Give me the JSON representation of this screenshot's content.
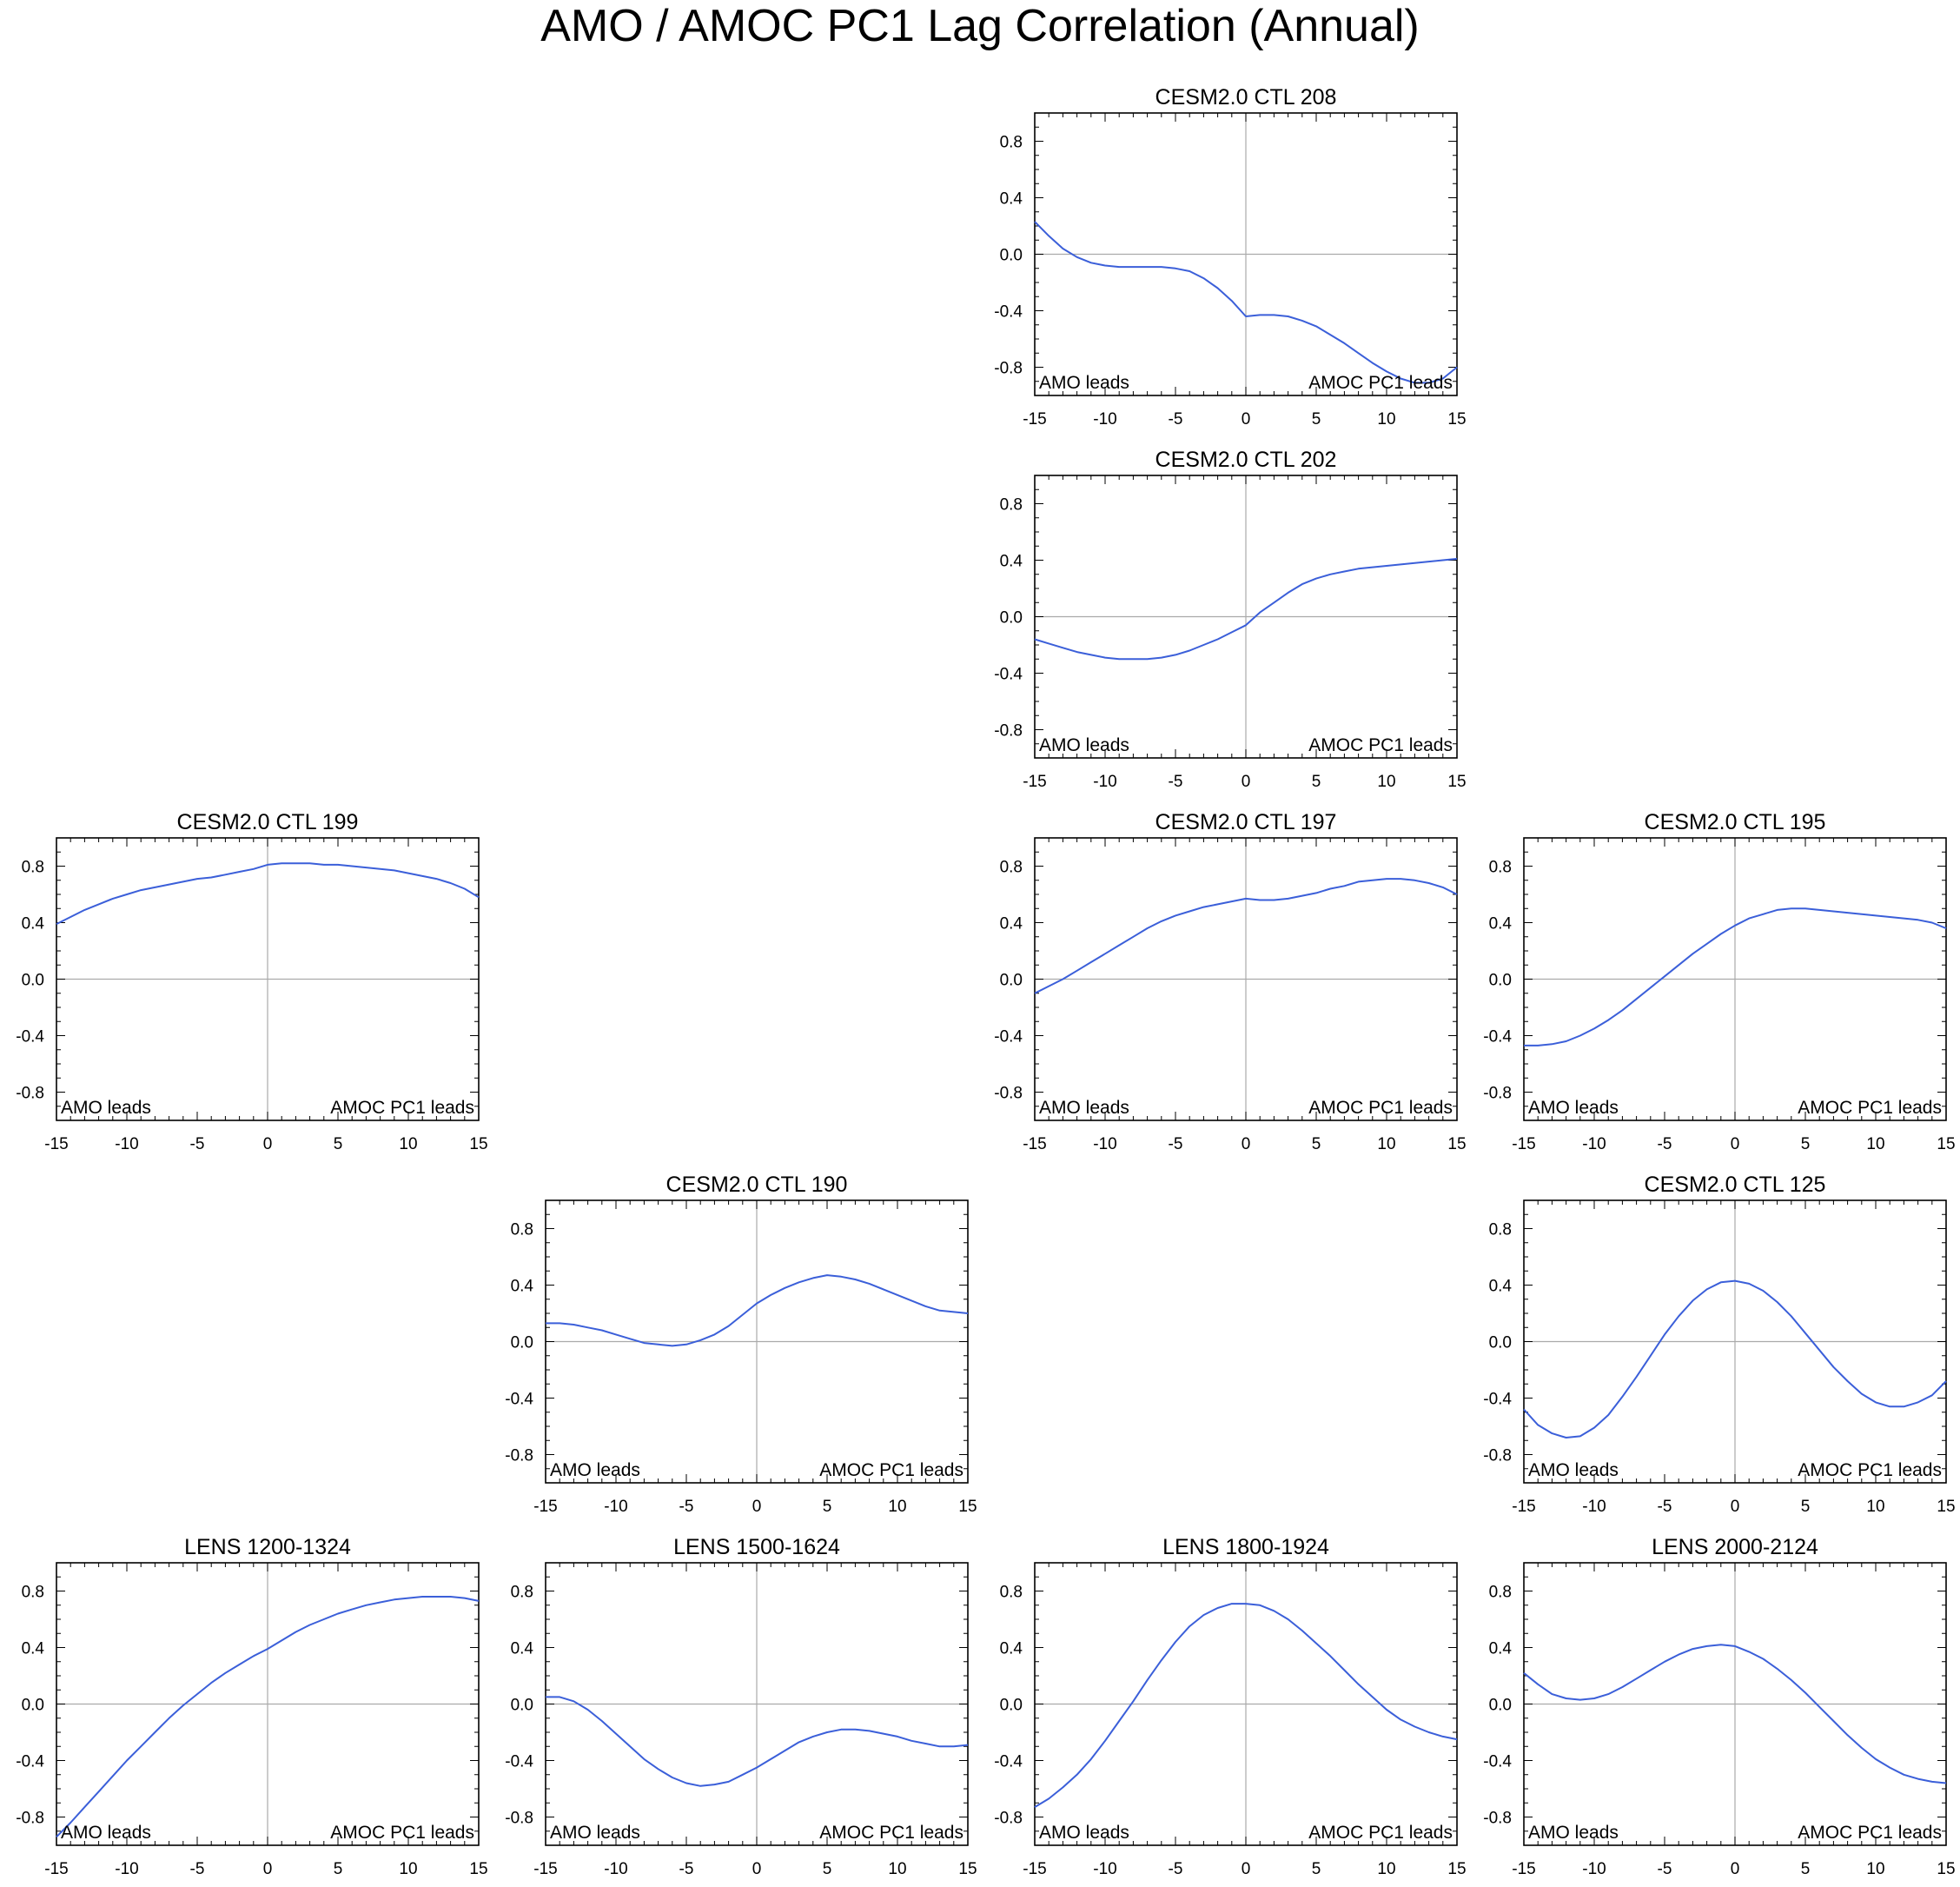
{
  "figure": {
    "title": "AMO / AMOC PC1 Lag Correlation (Annual)"
  },
  "colors": {
    "line": "#3b5fd9",
    "axis": "#000000",
    "zero_line": "#aaaaaa"
  },
  "chart_data": [
    {
      "type": "line",
      "title": "CESM2.0 CTL 208",
      "grid_pos": "row1-col3",
      "xlim": [
        -15,
        15
      ],
      "ylim": [
        -1,
        1
      ],
      "x_ticks": [
        -15,
        -10,
        -5,
        0,
        5,
        10,
        15
      ],
      "y_ticks": [
        -0.8,
        -0.4,
        0.0,
        0.4,
        0.8
      ],
      "annotations": {
        "left": "AMO leads",
        "right": "AMOC PC1 leads"
      },
      "x": [
        -15,
        -14,
        -13,
        -12,
        -11,
        -10,
        -9,
        -8,
        -7,
        -6,
        -5,
        -4,
        -3,
        -2,
        -1,
        0,
        1,
        2,
        3,
        4,
        5,
        6,
        7,
        8,
        9,
        10,
        11,
        12,
        13,
        14,
        15
      ],
      "values": [
        0.23,
        0.13,
        0.04,
        -0.02,
        -0.06,
        -0.08,
        -0.09,
        -0.09,
        -0.09,
        -0.09,
        -0.1,
        -0.12,
        -0.17,
        -0.24,
        -0.33,
        -0.44,
        -0.43,
        -0.43,
        -0.44,
        -0.47,
        -0.51,
        -0.57,
        -0.63,
        -0.7,
        -0.77,
        -0.83,
        -0.88,
        -0.91,
        -0.91,
        -0.88,
        -0.8
      ]
    },
    {
      "type": "line",
      "title": "CESM2.0 CTL 202",
      "grid_pos": "row2-col3",
      "xlim": [
        -15,
        15
      ],
      "ylim": [
        -1,
        1
      ],
      "x_ticks": [
        -15,
        -10,
        -5,
        0,
        5,
        10,
        15
      ],
      "y_ticks": [
        -0.8,
        -0.4,
        0.0,
        0.4,
        0.8
      ],
      "annotations": {
        "left": "AMO leads",
        "right": "AMOC PC1 leads"
      },
      "x": [
        -15,
        -14,
        -13,
        -12,
        -11,
        -10,
        -9,
        -8,
        -7,
        -6,
        -5,
        -4,
        -3,
        -2,
        -1,
        0,
        1,
        2,
        3,
        4,
        5,
        6,
        7,
        8,
        9,
        10,
        11,
        12,
        13,
        14,
        15
      ],
      "values": [
        -0.16,
        -0.19,
        -0.22,
        -0.25,
        -0.27,
        -0.29,
        -0.3,
        -0.3,
        -0.3,
        -0.29,
        -0.27,
        -0.24,
        -0.2,
        -0.16,
        -0.11,
        -0.06,
        0.03,
        0.1,
        0.17,
        0.23,
        0.27,
        0.3,
        0.32,
        0.34,
        0.35,
        0.36,
        0.37,
        0.38,
        0.39,
        0.4,
        0.41
      ]
    },
    {
      "type": "line",
      "title": "CESM2.0 CTL 199",
      "grid_pos": "row3-col1",
      "xlim": [
        -15,
        15
      ],
      "ylim": [
        -1,
        1
      ],
      "x_ticks": [
        -15,
        -10,
        -5,
        0,
        5,
        10,
        15
      ],
      "y_ticks": [
        -0.8,
        -0.4,
        0.0,
        0.4,
        0.8
      ],
      "annotations": {
        "left": "AMO leads",
        "right": "AMOC PC1 leads"
      },
      "x": [
        -15,
        -14,
        -13,
        -12,
        -11,
        -10,
        -9,
        -8,
        -7,
        -6,
        -5,
        -4,
        -3,
        -2,
        -1,
        0,
        1,
        2,
        3,
        4,
        5,
        6,
        7,
        8,
        9,
        10,
        11,
        12,
        13,
        14,
        15
      ],
      "values": [
        0.39,
        0.44,
        0.49,
        0.53,
        0.57,
        0.6,
        0.63,
        0.65,
        0.67,
        0.69,
        0.71,
        0.72,
        0.74,
        0.76,
        0.78,
        0.81,
        0.82,
        0.82,
        0.82,
        0.81,
        0.81,
        0.8,
        0.79,
        0.78,
        0.77,
        0.75,
        0.73,
        0.71,
        0.68,
        0.64,
        0.58
      ]
    },
    {
      "type": "line",
      "title": "CESM2.0 CTL 197",
      "grid_pos": "row3-col3",
      "xlim": [
        -15,
        15
      ],
      "ylim": [
        -1,
        1
      ],
      "x_ticks": [
        -15,
        -10,
        -5,
        0,
        5,
        10,
        15
      ],
      "y_ticks": [
        -0.8,
        -0.4,
        0.0,
        0.4,
        0.8
      ],
      "annotations": {
        "left": "AMO leads",
        "right": "AMOC PC1 leads"
      },
      "x": [
        -15,
        -14,
        -13,
        -12,
        -11,
        -10,
        -9,
        -8,
        -7,
        -6,
        -5,
        -4,
        -3,
        -2,
        -1,
        0,
        1,
        2,
        3,
        4,
        5,
        6,
        7,
        8,
        9,
        10,
        11,
        12,
        13,
        14,
        15
      ],
      "values": [
        -0.1,
        -0.05,
        0.0,
        0.06,
        0.12,
        0.18,
        0.24,
        0.3,
        0.36,
        0.41,
        0.45,
        0.48,
        0.51,
        0.53,
        0.55,
        0.57,
        0.56,
        0.56,
        0.57,
        0.59,
        0.61,
        0.64,
        0.66,
        0.69,
        0.7,
        0.71,
        0.71,
        0.7,
        0.68,
        0.65,
        0.6
      ]
    },
    {
      "type": "line",
      "title": "CESM2.0 CTL 195",
      "grid_pos": "row3-col4",
      "xlim": [
        -15,
        15
      ],
      "ylim": [
        -1,
        1
      ],
      "x_ticks": [
        -15,
        -10,
        -5,
        0,
        5,
        10,
        15
      ],
      "y_ticks": [
        -0.8,
        -0.4,
        0.0,
        0.4,
        0.8
      ],
      "annotations": {
        "left": "AMO leads",
        "right": "AMOC PC1 leads"
      },
      "x": [
        -15,
        -14,
        -13,
        -12,
        -11,
        -10,
        -9,
        -8,
        -7,
        -6,
        -5,
        -4,
        -3,
        -2,
        -1,
        0,
        1,
        2,
        3,
        4,
        5,
        6,
        7,
        8,
        9,
        10,
        11,
        12,
        13,
        14,
        15
      ],
      "values": [
        -0.47,
        -0.47,
        -0.46,
        -0.44,
        -0.4,
        -0.35,
        -0.29,
        -0.22,
        -0.14,
        -0.06,
        0.02,
        0.1,
        0.18,
        0.25,
        0.32,
        0.38,
        0.43,
        0.46,
        0.49,
        0.5,
        0.5,
        0.49,
        0.48,
        0.47,
        0.46,
        0.45,
        0.44,
        0.43,
        0.42,
        0.4,
        0.36
      ]
    },
    {
      "type": "line",
      "title": "CESM2.0 CTL 190",
      "grid_pos": "row4-col2",
      "xlim": [
        -15,
        15
      ],
      "ylim": [
        -1,
        1
      ],
      "x_ticks": [
        -15,
        -10,
        -5,
        0,
        5,
        10,
        15
      ],
      "y_ticks": [
        -0.8,
        -0.4,
        0.0,
        0.4,
        0.8
      ],
      "annotations": {
        "left": "AMO leads",
        "right": "AMOC PC1 leads"
      },
      "x": [
        -15,
        -14,
        -13,
        -12,
        -11,
        -10,
        -9,
        -8,
        -7,
        -6,
        -5,
        -4,
        -3,
        -2,
        -1,
        0,
        1,
        2,
        3,
        4,
        5,
        6,
        7,
        8,
        9,
        10,
        11,
        12,
        13,
        14,
        15
      ],
      "values": [
        0.13,
        0.13,
        0.12,
        0.1,
        0.08,
        0.05,
        0.02,
        -0.01,
        -0.02,
        -0.03,
        -0.02,
        0.01,
        0.05,
        0.11,
        0.19,
        0.27,
        0.33,
        0.38,
        0.42,
        0.45,
        0.47,
        0.46,
        0.44,
        0.41,
        0.37,
        0.33,
        0.29,
        0.25,
        0.22,
        0.21,
        0.2
      ]
    },
    {
      "type": "line",
      "title": "CESM2.0 CTL 125",
      "grid_pos": "row4-col4",
      "xlim": [
        -15,
        15
      ],
      "ylim": [
        -1,
        1
      ],
      "x_ticks": [
        -15,
        -10,
        -5,
        0,
        5,
        10,
        15
      ],
      "y_ticks": [
        -0.8,
        -0.4,
        0.0,
        0.4,
        0.8
      ],
      "annotations": {
        "left": "AMO leads",
        "right": "AMOC PC1 leads"
      },
      "x": [
        -15,
        -14,
        -13,
        -12,
        -11,
        -10,
        -9,
        -8,
        -7,
        -6,
        -5,
        -4,
        -3,
        -2,
        -1,
        0,
        1,
        2,
        3,
        4,
        5,
        6,
        7,
        8,
        9,
        10,
        11,
        12,
        13,
        14,
        15
      ],
      "values": [
        -0.48,
        -0.59,
        -0.65,
        -0.68,
        -0.67,
        -0.61,
        -0.52,
        -0.39,
        -0.25,
        -0.1,
        0.05,
        0.18,
        0.29,
        0.37,
        0.42,
        0.43,
        0.41,
        0.36,
        0.28,
        0.18,
        0.06,
        -0.06,
        -0.18,
        -0.28,
        -0.37,
        -0.43,
        -0.46,
        -0.46,
        -0.43,
        -0.38,
        -0.28
      ]
    },
    {
      "type": "line",
      "title": "LENS 1200-1324",
      "grid_pos": "row5-col1",
      "xlim": [
        -15,
        15
      ],
      "ylim": [
        -1,
        1
      ],
      "x_ticks": [
        -15,
        -10,
        -5,
        0,
        5,
        10,
        15
      ],
      "y_ticks": [
        -0.8,
        -0.4,
        0.0,
        0.4,
        0.8
      ],
      "annotations": {
        "left": "AMO leads",
        "right": "AMOC PC1 leads"
      },
      "x": [
        -15,
        -14,
        -13,
        -12,
        -11,
        -10,
        -9,
        -8,
        -7,
        -6,
        -5,
        -4,
        -3,
        -2,
        -1,
        0,
        1,
        2,
        3,
        4,
        5,
        6,
        7,
        8,
        9,
        10,
        11,
        12,
        13,
        14,
        15
      ],
      "values": [
        -0.94,
        -0.84,
        -0.73,
        -0.62,
        -0.51,
        -0.4,
        -0.3,
        -0.2,
        -0.1,
        -0.01,
        0.07,
        0.15,
        0.22,
        0.28,
        0.34,
        0.39,
        0.45,
        0.51,
        0.56,
        0.6,
        0.64,
        0.67,
        0.7,
        0.72,
        0.74,
        0.75,
        0.76,
        0.76,
        0.76,
        0.75,
        0.73
      ]
    },
    {
      "type": "line",
      "title": "LENS 1500-1624",
      "grid_pos": "row5-col2",
      "xlim": [
        -15,
        15
      ],
      "ylim": [
        -1,
        1
      ],
      "x_ticks": [
        -15,
        -10,
        -5,
        0,
        5,
        10,
        15
      ],
      "y_ticks": [
        -0.8,
        -0.4,
        0.0,
        0.4,
        0.8
      ],
      "annotations": {
        "left": "AMO leads",
        "right": "AMOC PC1 leads"
      },
      "x": [
        -15,
        -14,
        -13,
        -12,
        -11,
        -10,
        -9,
        -8,
        -7,
        -6,
        -5,
        -4,
        -3,
        -2,
        -1,
        0,
        1,
        2,
        3,
        4,
        5,
        6,
        7,
        8,
        9,
        10,
        11,
        12,
        13,
        14,
        15
      ],
      "values": [
        0.05,
        0.05,
        0.02,
        -0.04,
        -0.12,
        -0.21,
        -0.3,
        -0.39,
        -0.46,
        -0.52,
        -0.56,
        -0.58,
        -0.57,
        -0.55,
        -0.5,
        -0.45,
        -0.39,
        -0.33,
        -0.27,
        -0.23,
        -0.2,
        -0.18,
        -0.18,
        -0.19,
        -0.21,
        -0.23,
        -0.26,
        -0.28,
        -0.3,
        -0.3,
        -0.29
      ]
    },
    {
      "type": "line",
      "title": "LENS 1800-1924",
      "grid_pos": "row5-col3",
      "xlim": [
        -15,
        15
      ],
      "ylim": [
        -1,
        1
      ],
      "x_ticks": [
        -15,
        -10,
        -5,
        0,
        5,
        10,
        15
      ],
      "y_ticks": [
        -0.8,
        -0.4,
        0.0,
        0.4,
        0.8
      ],
      "annotations": {
        "left": "AMO leads",
        "right": "AMOC PC1 leads"
      },
      "x": [
        -15,
        -14,
        -13,
        -12,
        -11,
        -10,
        -9,
        -8,
        -7,
        -6,
        -5,
        -4,
        -3,
        -2,
        -1,
        0,
        1,
        2,
        3,
        4,
        5,
        6,
        7,
        8,
        9,
        10,
        11,
        12,
        13,
        14,
        15
      ],
      "values": [
        -0.73,
        -0.67,
        -0.59,
        -0.5,
        -0.39,
        -0.26,
        -0.12,
        0.02,
        0.17,
        0.31,
        0.44,
        0.55,
        0.63,
        0.68,
        0.71,
        0.71,
        0.7,
        0.66,
        0.6,
        0.52,
        0.43,
        0.34,
        0.24,
        0.14,
        0.05,
        -0.04,
        -0.11,
        -0.16,
        -0.2,
        -0.23,
        -0.25
      ]
    },
    {
      "type": "line",
      "title": "LENS 2000-2124",
      "grid_pos": "row5-col4",
      "xlim": [
        -15,
        15
      ],
      "ylim": [
        -1,
        1
      ],
      "x_ticks": [
        -15,
        -10,
        -5,
        0,
        5,
        10,
        15
      ],
      "y_ticks": [
        -0.8,
        -0.4,
        0.0,
        0.4,
        0.8
      ],
      "annotations": {
        "left": "AMO leads",
        "right": "AMOC PC1 leads"
      },
      "x": [
        -15,
        -14,
        -13,
        -12,
        -11,
        -10,
        -9,
        -8,
        -7,
        -6,
        -5,
        -4,
        -3,
        -2,
        -1,
        0,
        1,
        2,
        3,
        4,
        5,
        6,
        7,
        8,
        9,
        10,
        11,
        12,
        13,
        14,
        15
      ],
      "values": [
        0.22,
        0.14,
        0.07,
        0.04,
        0.03,
        0.04,
        0.07,
        0.12,
        0.18,
        0.24,
        0.3,
        0.35,
        0.39,
        0.41,
        0.42,
        0.41,
        0.37,
        0.32,
        0.25,
        0.17,
        0.08,
        -0.02,
        -0.12,
        -0.22,
        -0.31,
        -0.39,
        -0.45,
        -0.5,
        -0.53,
        -0.55,
        -0.56
      ]
    }
  ]
}
